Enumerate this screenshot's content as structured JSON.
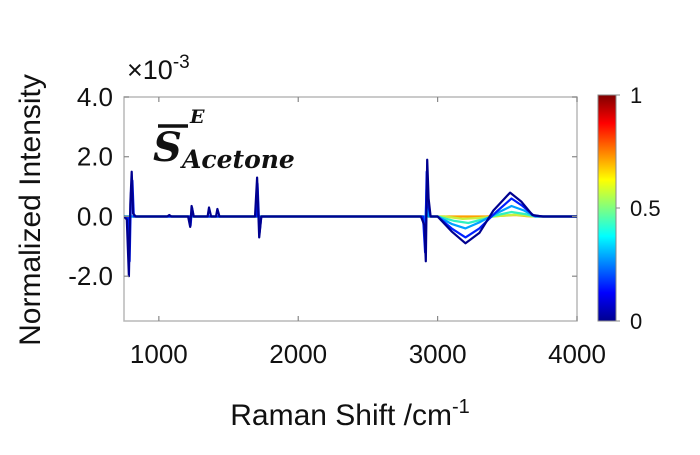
{
  "chart_data": {
    "type": "line",
    "xlabel": "Raman Shift /cm",
    "xlabel_sup": "-1",
    "ylabel": "Normalized Intensity",
    "y_multiplier": "×10",
    "y_multiplier_exp": "-3",
    "xlim": [
      750,
      4000
    ],
    "ylim": [
      -3.5,
      4.0
    ],
    "x_ticks": [
      1000,
      2000,
      3000,
      4000
    ],
    "x_tick_labels": [
      "1000",
      "2000",
      "3000",
      "4000"
    ],
    "y_ticks": [
      4.0,
      2.0,
      0.0,
      -2.0
    ],
    "y_tick_labels": [
      "4.0",
      "2.0",
      "0.0",
      "-2.0"
    ],
    "grid": false,
    "annotation": {
      "symbol": "S",
      "superscript": "E",
      "subscript": "Acetone"
    },
    "colorbar": {
      "range": [
        0,
        1
      ],
      "ticks": [
        0,
        0.5,
        1
      ],
      "tick_labels": [
        "0",
        "0.5",
        "1"
      ],
      "colormap": "jet"
    },
    "series": [
      {
        "color_value": 0.0,
        "color": "#00008f",
        "points": [
          [
            750,
            0.0
          ],
          [
            770,
            -0.1
          ],
          [
            785,
            -2.0
          ],
          [
            795,
            0.4
          ],
          [
            805,
            1.5
          ],
          [
            815,
            0.1
          ],
          [
            835,
            0.0
          ],
          [
            1060,
            0.0
          ],
          [
            1075,
            0.05
          ],
          [
            1090,
            0.0
          ],
          [
            1210,
            0.0
          ],
          [
            1225,
            -0.35
          ],
          [
            1235,
            0.35
          ],
          [
            1250,
            0.0
          ],
          [
            1350,
            0.0
          ],
          [
            1360,
            0.3
          ],
          [
            1375,
            0.0
          ],
          [
            1410,
            0.0
          ],
          [
            1420,
            0.25
          ],
          [
            1435,
            0.0
          ],
          [
            1690,
            0.0
          ],
          [
            1705,
            1.3
          ],
          [
            1720,
            -0.7
          ],
          [
            1735,
            0.0
          ],
          [
            2880,
            0.0
          ],
          [
            2905,
            -0.3
          ],
          [
            2915,
            -1.5
          ],
          [
            2925,
            1.9
          ],
          [
            2935,
            0.6
          ],
          [
            2950,
            0.0
          ],
          [
            3000,
            0.0
          ],
          [
            3100,
            -0.5
          ],
          [
            3200,
            -0.9
          ],
          [
            3300,
            -0.55
          ],
          [
            3400,
            0.2
          ],
          [
            3520,
            0.8
          ],
          [
            3600,
            0.5
          ],
          [
            3680,
            0.05
          ],
          [
            3750,
            0.0
          ],
          [
            4000,
            0.0
          ]
        ]
      },
      {
        "color_value": 0.1,
        "color": "#0020ff",
        "points": [
          [
            750,
            0.0
          ],
          [
            780,
            -0.05
          ],
          [
            790,
            -1.5
          ],
          [
            800,
            0.8
          ],
          [
            810,
            1.2
          ],
          [
            820,
            0.0
          ],
          [
            1220,
            0.0
          ],
          [
            1228,
            -0.3
          ],
          [
            1238,
            0.3
          ],
          [
            1250,
            0.0
          ],
          [
            1700,
            0.0
          ],
          [
            1708,
            1.1
          ],
          [
            1722,
            -0.55
          ],
          [
            1735,
            0.0
          ],
          [
            2895,
            0.0
          ],
          [
            2910,
            -1.2
          ],
          [
            2922,
            1.5
          ],
          [
            2935,
            0.3
          ],
          [
            2950,
            0.0
          ],
          [
            3000,
            0.0
          ],
          [
            3100,
            -0.4
          ],
          [
            3200,
            -0.7
          ],
          [
            3300,
            -0.4
          ],
          [
            3420,
            0.15
          ],
          [
            3530,
            0.6
          ],
          [
            3610,
            0.35
          ],
          [
            3690,
            0.03
          ],
          [
            3760,
            0.0
          ],
          [
            4000,
            0.0
          ]
        ]
      },
      {
        "color_value": 0.3,
        "color": "#00a0ff",
        "points": [
          [
            750,
            0.0
          ],
          [
            2900,
            0.0
          ],
          [
            2912,
            -0.6
          ],
          [
            2920,
            0.9
          ],
          [
            2935,
            0.0
          ],
          [
            3000,
            0.0
          ],
          [
            3100,
            -0.25
          ],
          [
            3200,
            -0.4
          ],
          [
            3300,
            -0.2
          ],
          [
            3420,
            0.1
          ],
          [
            3530,
            0.35
          ],
          [
            3620,
            0.2
          ],
          [
            3700,
            0.0
          ],
          [
            4000,
            0.0
          ]
        ]
      },
      {
        "color_value": 0.45,
        "color": "#30f0c0",
        "points": [
          [
            750,
            0.0
          ],
          [
            2905,
            0.0
          ],
          [
            2915,
            -0.3
          ],
          [
            2922,
            0.45
          ],
          [
            2935,
            0.0
          ],
          [
            3000,
            0.0
          ],
          [
            3120,
            -0.15
          ],
          [
            3220,
            -0.22
          ],
          [
            3320,
            -0.1
          ],
          [
            3430,
            0.05
          ],
          [
            3530,
            0.15
          ],
          [
            3630,
            0.08
          ],
          [
            3700,
            0.0
          ],
          [
            4000,
            0.0
          ]
        ]
      },
      {
        "color_value": 0.6,
        "color": "#c8f040",
        "points": [
          [
            750,
            0.0
          ],
          [
            3050,
            0.0
          ],
          [
            3180,
            -0.08
          ],
          [
            3300,
            -0.05
          ],
          [
            3450,
            0.02
          ],
          [
            3550,
            0.06
          ],
          [
            3650,
            0.02
          ],
          [
            3720,
            0.0
          ],
          [
            4000,
            0.0
          ]
        ]
      },
      {
        "color_value": 0.75,
        "color": "#ffa000",
        "points": [
          [
            750,
            0.0
          ],
          [
            3350,
            0.0
          ],
          [
            3480,
            0.03
          ],
          [
            3560,
            0.05
          ],
          [
            3640,
            0.01
          ],
          [
            3700,
            0.0
          ],
          [
            4000,
            0.0
          ]
        ]
      }
    ]
  }
}
